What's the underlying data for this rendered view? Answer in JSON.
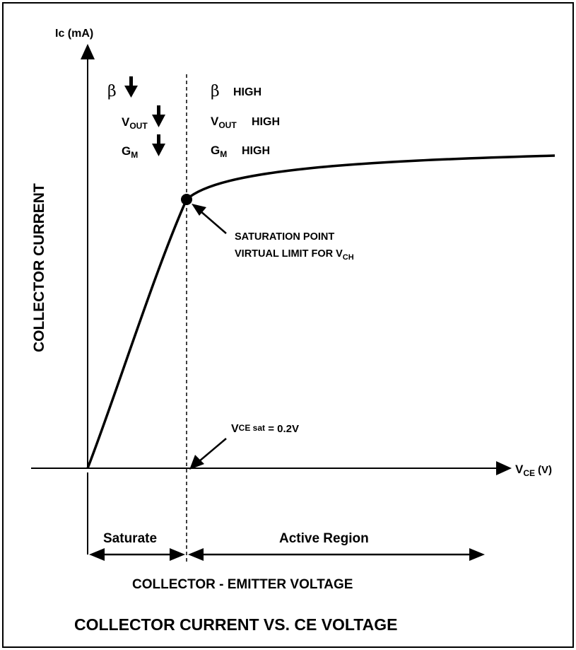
{
  "axes": {
    "y_label": "Ic (mA)",
    "x_label_main": "V",
    "x_label_sub": "CE",
    "x_label_unit": "(V)",
    "y_axis_title": "COLLECTOR CURRENT",
    "x_axis_title": "COLLECTOR - EMITTER VOLTAGE"
  },
  "title": "COLLECTOR CURRENT VS. CE VOLTAGE",
  "left_region": {
    "beta": "β",
    "vout_main": "V",
    "vout_sub": "OUT",
    "gm_main": "G",
    "gm_sub": "M"
  },
  "right_region": {
    "beta": "β",
    "beta_state": "HIGH",
    "vout_main": "V",
    "vout_sub": "OUT",
    "vout_state": "HIGH",
    "gm_main": "G",
    "gm_sub": "M",
    "gm_state": "HIGH"
  },
  "annotations": {
    "sat_point_line1": "SATURATION POINT",
    "sat_point_line2_main": "VIRTUAL LIMIT FOR V",
    "sat_point_line2_sub": "CH",
    "vce_sat_main": "V",
    "vce_sat_sub": "CE sat",
    "vce_sat_value": " = 0.2V"
  },
  "regions": {
    "saturate": "Saturate",
    "active": "Active Region"
  },
  "colors": {
    "ink": "#000000",
    "background": "#ffffff"
  }
}
